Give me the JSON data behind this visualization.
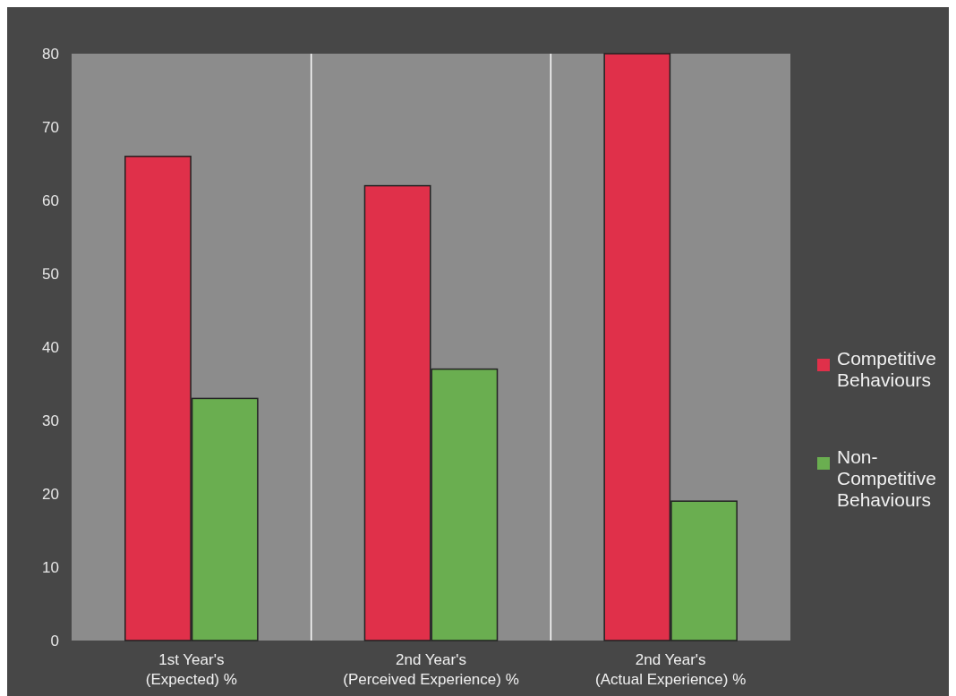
{
  "chart_data": {
    "type": "bar",
    "categories": [
      "1st Year's (Expected) %",
      "2nd Year's (Perceived Experience) %",
      "2nd Year's (Actual Experience) %"
    ],
    "series": [
      {
        "name": "Competitive Behaviours",
        "color": "#e0304a",
        "values": [
          66,
          62,
          80
        ]
      },
      {
        "name": "Non-Competitive Behaviours",
        "color": "#6aae50",
        "values": [
          33,
          37,
          19
        ]
      }
    ],
    "ylim": [
      0,
      80
    ],
    "yticks": [
      0,
      10,
      20,
      30,
      40,
      50,
      60,
      70,
      80
    ],
    "grid": "x",
    "legend": "right"
  }
}
